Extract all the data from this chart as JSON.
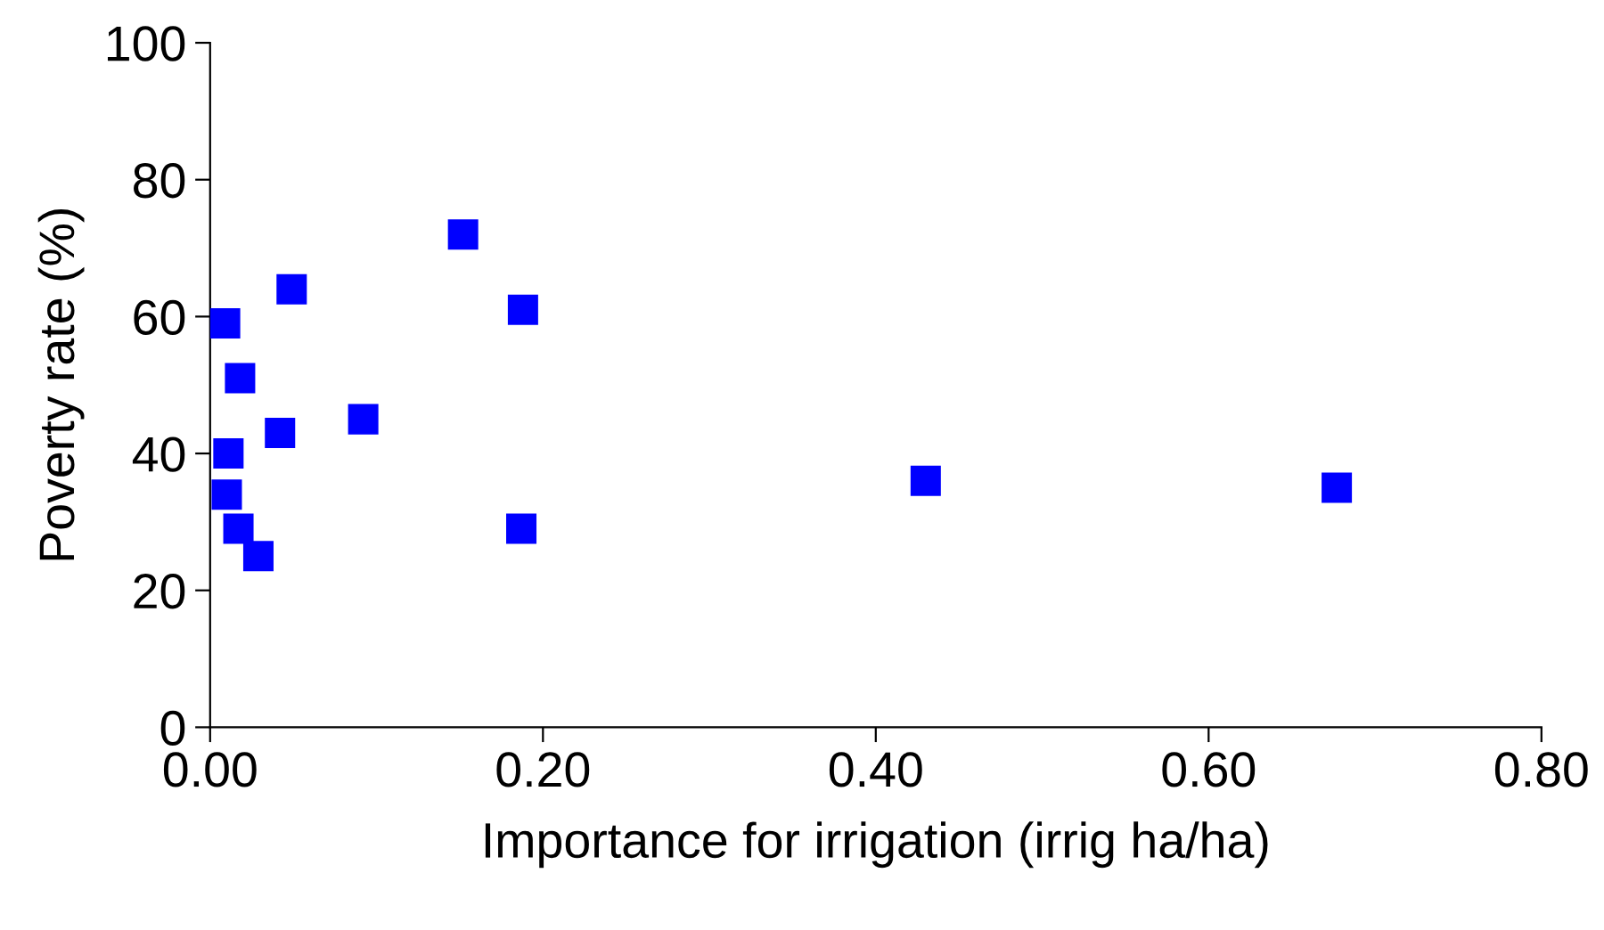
{
  "chart_data": {
    "type": "scatter",
    "xlabel": "Importance for irrigation (irrig ha/ha)",
    "ylabel": "Poverty rate (%)",
    "x": [
      0.009,
      0.049,
      0.152,
      0.188,
      0.018,
      0.011,
      0.042,
      0.092,
      0.01,
      0.017,
      0.029,
      0.187,
      0.43,
      0.677
    ],
    "series": [
      {
        "color": "#0000ff",
        "values": [
          59,
          64,
          72,
          61,
          51,
          40,
          43,
          45,
          34,
          29,
          25,
          29,
          36,
          35
        ]
      }
    ],
    "xlim": [
      0,
      0.8
    ],
    "xticks": [
      {
        "value": 0,
        "label": "0.00"
      },
      {
        "value": 0.2,
        "label": "0.20"
      },
      {
        "value": 0.4,
        "label": "0.40"
      },
      {
        "value": 0.6,
        "label": "0.60"
      },
      {
        "value": 0.8,
        "label": "0.80"
      }
    ],
    "ylim": [
      0,
      100
    ],
    "yticks": [
      0,
      20,
      40,
      60,
      80,
      100
    ],
    "grid": false,
    "legend": false,
    "marker": "square"
  }
}
